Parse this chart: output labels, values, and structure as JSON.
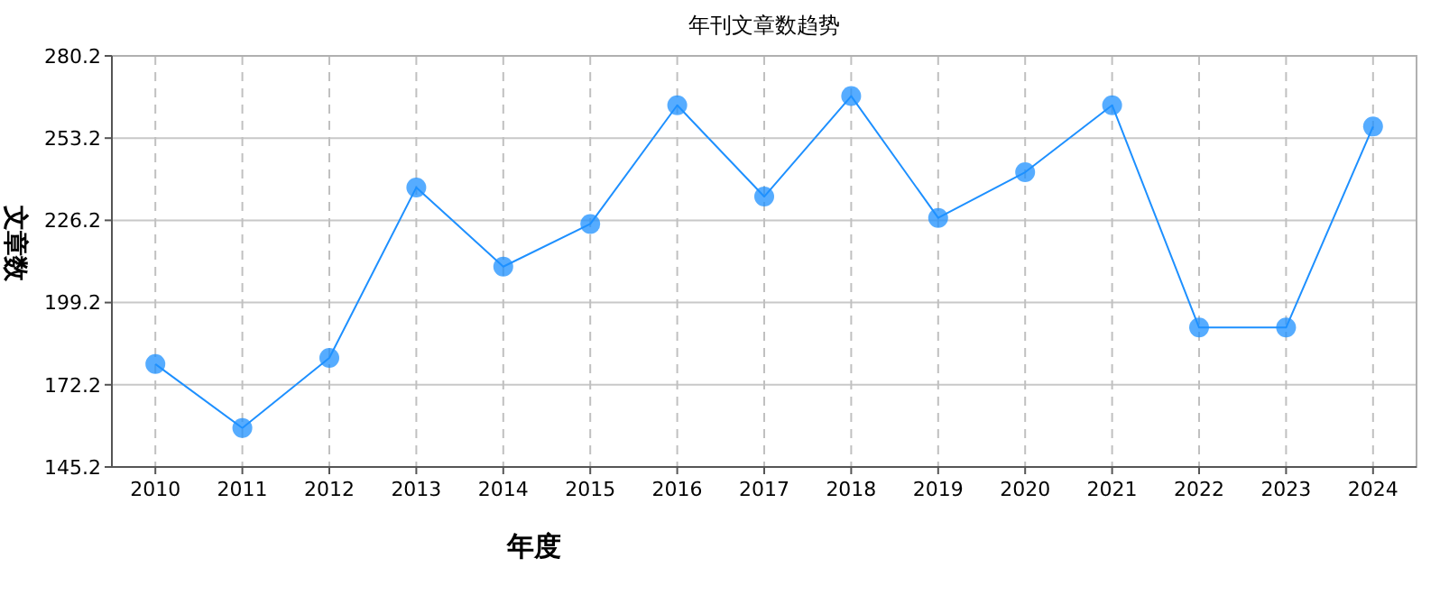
{
  "chart_data": {
    "type": "line",
    "title": "年刊文章数趋势",
    "xlabel": "年度",
    "ylabel": "文章数",
    "categories": [
      "2010",
      "2011",
      "2012",
      "2013",
      "2014",
      "2015",
      "2016",
      "2017",
      "2018",
      "2019",
      "2020",
      "2021",
      "2022",
      "2023",
      "2024"
    ],
    "series": [
      {
        "color": "#1e90ff",
        "values": [
          179,
          158,
          181,
          237,
          211,
          225,
          264,
          234,
          267,
          227,
          242,
          264,
          191,
          191,
          257
        ]
      }
    ],
    "ylim": [
      145.2,
      280.2
    ],
    "yticks": [
      145.2,
      172.2,
      199.2,
      226.2,
      253.2,
      280.2
    ],
    "grid": true,
    "marker": "circle",
    "line_style": "solid"
  }
}
